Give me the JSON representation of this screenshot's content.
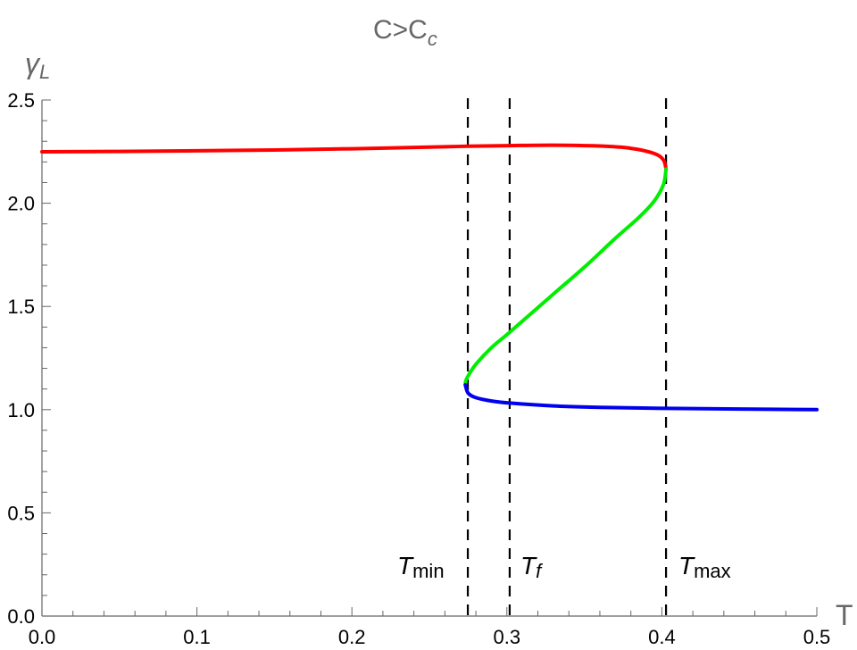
{
  "chart_data": {
    "type": "line",
    "title": "C>C_c",
    "title_main": "C>C",
    "title_sub": "c",
    "xlabel": "T",
    "ylabel": "γ_L",
    "ylabel_main": "γ",
    "ylabel_sub": "L",
    "xlim": [
      0,
      0.5
    ],
    "ylim": [
      0,
      2.5
    ],
    "x_ticks": [
      0.0,
      0.1,
      0.2,
      0.3,
      0.4,
      0.5
    ],
    "x_tick_labels": [
      "0.0",
      "0.1",
      "0.2",
      "0.3",
      "0.4",
      "0.5"
    ],
    "y_ticks": [
      0.0,
      0.5,
      1.0,
      1.5,
      2.0,
      2.5
    ],
    "y_tick_labels": [
      "0.0",
      "0.5",
      "1.0",
      "1.5",
      "2.0",
      "2.5"
    ],
    "grid": false,
    "legend": null,
    "series": [
      {
        "name": "upper branch",
        "color": "#ff0000",
        "points": [
          [
            0.0,
            2.249
          ],
          [
            0.05,
            2.251
          ],
          [
            0.1,
            2.254
          ],
          [
            0.15,
            2.258
          ],
          [
            0.2,
            2.264
          ],
          [
            0.25,
            2.272
          ],
          [
            0.275,
            2.276
          ],
          [
            0.3018,
            2.279
          ],
          [
            0.33,
            2.281
          ],
          [
            0.36,
            2.277
          ],
          [
            0.38,
            2.266
          ],
          [
            0.395,
            2.241
          ],
          [
            0.401,
            2.21
          ],
          [
            0.4027,
            2.165
          ]
        ]
      },
      {
        "name": "middle branch",
        "color": "#00ee00",
        "points": [
          [
            0.4027,
            2.165
          ],
          [
            0.401,
            2.09
          ],
          [
            0.395,
            2.01
          ],
          [
            0.385,
            1.93
          ],
          [
            0.37,
            1.83
          ],
          [
            0.35,
            1.69
          ],
          [
            0.33,
            1.56
          ],
          [
            0.3018,
            1.375
          ],
          [
            0.29,
            1.3
          ],
          [
            0.28,
            1.22
          ],
          [
            0.2755,
            1.17
          ],
          [
            0.2735,
            1.14
          ],
          [
            0.2732,
            1.12
          ]
        ]
      },
      {
        "name": "lower branch",
        "color": "#0000ee",
        "points": [
          [
            0.2732,
            1.12
          ],
          [
            0.275,
            1.08
          ],
          [
            0.28,
            1.058
          ],
          [
            0.29,
            1.042
          ],
          [
            0.3018,
            1.032
          ],
          [
            0.33,
            1.018
          ],
          [
            0.36,
            1.011
          ],
          [
            0.4027,
            1.006
          ],
          [
            0.45,
            1.003
          ],
          [
            0.5,
            1.0
          ]
        ]
      }
    ],
    "vertical_lines": [
      {
        "name": "T_min",
        "label_main": "T",
        "label_sub": "min",
        "x": 0.2748,
        "style": "dashed",
        "color": "#000000"
      },
      {
        "name": "T_f",
        "label_main": "T",
        "label_sub": "f",
        "x": 0.3018,
        "style": "dashed",
        "color": "#000000"
      },
      {
        "name": "T_max",
        "label_main": "T",
        "label_sub": "max",
        "x": 0.4027,
        "style": "dashed",
        "color": "#000000"
      }
    ]
  }
}
